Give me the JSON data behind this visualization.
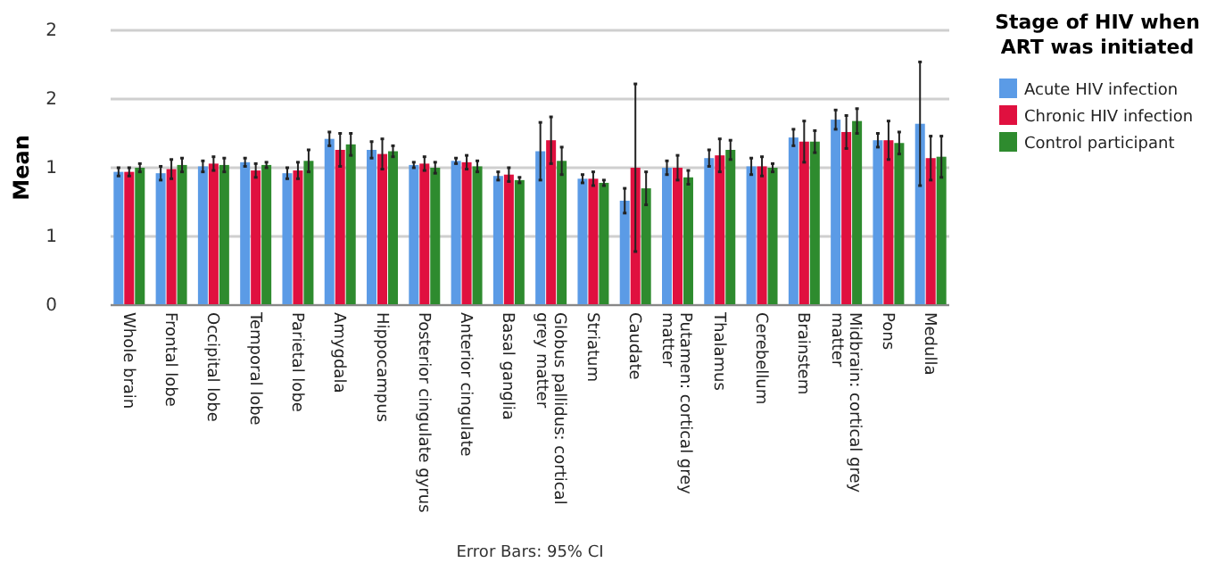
{
  "chart_data": {
    "type": "bar",
    "ylabel": "Mean",
    "legend_title": "Stage of HIV when ART was initiated",
    "legend": "top right",
    "grid": "y",
    "ylim": [
      0,
      2
    ],
    "yticks": [
      0,
      {
        "value": 0.5,
        "label": "1"
      },
      {
        "value": 1,
        "label": "1"
      },
      {
        "value": 1.5,
        "label": "2"
      },
      {
        "value": 2,
        "label": "2"
      }
    ],
    "categories": [
      "Whole brain",
      "Frontal lobe",
      "Occipital lobe",
      "Temporal lobe",
      "Parietal lobe",
      "Amygdala",
      "Hippocampus",
      "Posterior cingulate gyrus",
      "Anterior cingulate",
      "Basal ganglia",
      "Globus pallidus: cortical grey matter",
      "Striatum",
      "Caudate",
      "Putamen: cortical grey matter",
      "Thalamus",
      "Cerebellum",
      "Brainstem",
      "Midbrain: cortical grey matter",
      "Pons",
      "Medulla"
    ],
    "series": [
      {
        "name": "Acute HIV infection",
        "color": "#5b9be6",
        "values": [
          0.97,
          0.96,
          1.01,
          1.04,
          0.96,
          1.21,
          1.13,
          1.02,
          1.05,
          0.94,
          1.12,
          0.92,
          0.76,
          1.0,
          1.07,
          1.01,
          1.22,
          1.35,
          1.2,
          1.32
        ],
        "errors": [
          0.03,
          0.05,
          0.04,
          0.03,
          0.04,
          0.05,
          0.06,
          0.02,
          0.02,
          0.03,
          0.21,
          0.03,
          0.09,
          0.05,
          0.06,
          0.06,
          0.06,
          0.07,
          0.05,
          0.45
        ]
      },
      {
        "name": "Chronic HIV infection",
        "color": "#e0103f",
        "values": [
          0.97,
          0.99,
          1.03,
          0.98,
          0.98,
          1.13,
          1.1,
          1.03,
          1.04,
          0.95,
          1.2,
          0.92,
          1.0,
          1.0,
          1.09,
          1.01,
          1.19,
          1.26,
          1.2,
          1.07
        ],
        "errors": [
          0.03,
          0.07,
          0.05,
          0.05,
          0.06,
          0.12,
          0.11,
          0.05,
          0.05,
          0.05,
          0.17,
          0.05,
          0.61,
          0.09,
          0.12,
          0.07,
          0.15,
          0.12,
          0.14,
          0.16
        ]
      },
      {
        "name": "Control participant",
        "color": "#2e8b2e",
        "values": [
          1.0,
          1.02,
          1.02,
          1.02,
          1.05,
          1.17,
          1.12,
          1.0,
          1.01,
          0.91,
          1.05,
          0.89,
          0.85,
          0.93,
          1.13,
          1.0,
          1.19,
          1.34,
          1.18,
          1.08
        ],
        "errors": [
          0.03,
          0.05,
          0.05,
          0.02,
          0.08,
          0.08,
          0.04,
          0.04,
          0.04,
          0.02,
          0.1,
          0.02,
          0.12,
          0.05,
          0.07,
          0.03,
          0.08,
          0.09,
          0.08,
          0.15
        ]
      }
    ],
    "annotations": [
      "Error Bars: 95% CI"
    ]
  }
}
